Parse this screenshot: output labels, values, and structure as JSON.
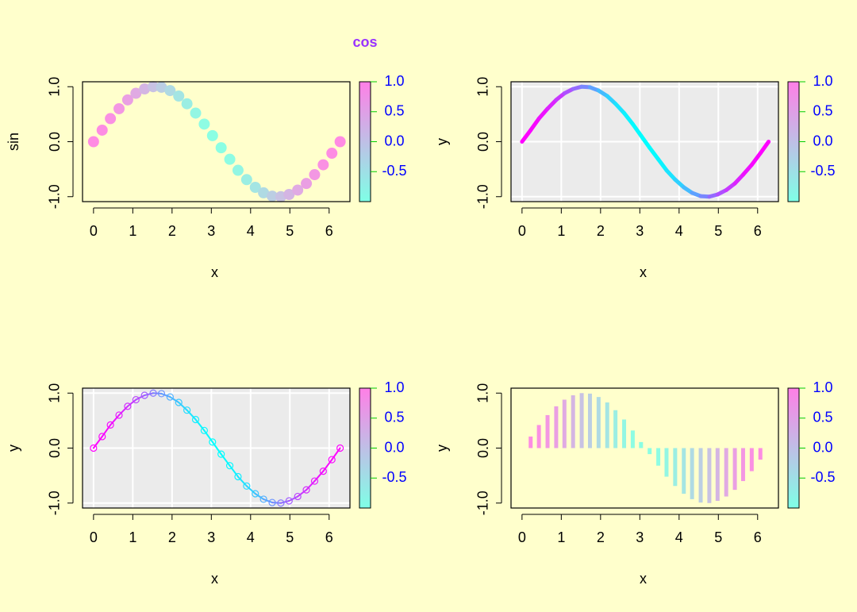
{
  "chart_data": [
    {
      "type": "scatter",
      "color_label": "cos",
      "xlabel": "x",
      "ylabel": "sin",
      "x": [
        0,
        0.22,
        0.43,
        0.65,
        0.87,
        1.08,
        1.3,
        1.52,
        1.73,
        1.95,
        2.17,
        2.38,
        2.6,
        2.82,
        3.03,
        3.25,
        3.47,
        3.68,
        3.9,
        4.12,
        4.33,
        4.55,
        4.77,
        4.98,
        5.2,
        5.42,
        5.63,
        5.85,
        6.07,
        6.28
      ],
      "y": [
        0,
        0.21,
        0.42,
        0.6,
        0.76,
        0.88,
        0.96,
        1,
        0.99,
        0.93,
        0.83,
        0.69,
        0.52,
        0.32,
        0.11,
        -0.11,
        -0.32,
        -0.52,
        -0.69,
        -0.83,
        -0.93,
        -0.99,
        -1,
        -0.96,
        -0.88,
        -0.76,
        -0.6,
        -0.42,
        -0.21,
        0
      ],
      "colvar": [
        1,
        0.98,
        0.91,
        0.8,
        0.65,
        0.47,
        0.27,
        0.05,
        -0.16,
        -0.37,
        -0.56,
        -0.72,
        -0.86,
        -0.95,
        -0.99,
        -0.99,
        -0.95,
        -0.86,
        -0.72,
        -0.56,
        -0.37,
        -0.16,
        0.05,
        0.27,
        0.47,
        0.65,
        0.8,
        0.91,
        0.98,
        1
      ],
      "xlim": [
        -0.28,
        6.53
      ],
      "ylim": [
        -1.09,
        1.09
      ],
      "xticks": [
        0,
        1,
        2,
        3,
        4,
        5,
        6
      ],
      "yticks": [
        {
          "value": -1,
          "label": "-1.0"
        },
        {
          "value": 0,
          "label": "0.0"
        },
        {
          "value": 1,
          "label": "1.0"
        }
      ],
      "clim": [
        -1,
        1
      ],
      "cticks": [
        {
          "value": -0.5,
          "label": "-0.5"
        },
        {
          "value": 0,
          "label": "0.0"
        },
        {
          "value": 0.5,
          "label": "0.5"
        },
        {
          "value": 1,
          "label": "1.0"
        }
      ],
      "palette": [
        "#00ffff",
        "#ff00ff"
      ],
      "alpha": 0.45,
      "background": "#ffffcc",
      "grid": false
    },
    {
      "type": "line",
      "xlabel": "x",
      "ylabel": "y",
      "x": [
        0,
        0.22,
        0.43,
        0.65,
        0.87,
        1.08,
        1.3,
        1.52,
        1.73,
        1.95,
        2.17,
        2.38,
        2.6,
        2.82,
        3.03,
        3.25,
        3.47,
        3.68,
        3.9,
        4.12,
        4.33,
        4.55,
        4.77,
        4.98,
        5.2,
        5.42,
        5.63,
        5.85,
        6.07,
        6.28
      ],
      "y": [
        0,
        0.21,
        0.42,
        0.6,
        0.76,
        0.88,
        0.96,
        1,
        0.99,
        0.93,
        0.83,
        0.69,
        0.52,
        0.32,
        0.11,
        -0.11,
        -0.32,
        -0.52,
        -0.69,
        -0.83,
        -0.93,
        -0.99,
        -1,
        -0.96,
        -0.88,
        -0.76,
        -0.6,
        -0.42,
        -0.21,
        0
      ],
      "colvar": [
        1,
        0.98,
        0.91,
        0.8,
        0.65,
        0.47,
        0.27,
        0.05,
        -0.16,
        -0.37,
        -0.56,
        -0.72,
        -0.86,
        -0.95,
        -0.99,
        -0.99,
        -0.95,
        -0.86,
        -0.72,
        -0.56,
        -0.37,
        -0.16,
        0.05,
        0.27,
        0.47,
        0.65,
        0.8,
        0.91,
        0.98,
        1
      ],
      "xlim": [
        -0.28,
        6.53
      ],
      "ylim": [
        -1.09,
        1.09
      ],
      "xticks": [
        0,
        1,
        2,
        3,
        4,
        5,
        6
      ],
      "yticks": [
        {
          "value": -1,
          "label": "-1.0"
        },
        {
          "value": 0,
          "label": "0.0"
        },
        {
          "value": 1,
          "label": "1.0"
        }
      ],
      "clim": [
        -1,
        1
      ],
      "cticks": [
        {
          "value": -0.5,
          "label": "-0.5"
        },
        {
          "value": 0,
          "label": "0.0"
        },
        {
          "value": 0.5,
          "label": "0.5"
        },
        {
          "value": 1,
          "label": "1.0"
        }
      ],
      "palette": [
        "#00ffff",
        "#ff00ff"
      ],
      "alpha": 1,
      "line_width": 5,
      "markers": false,
      "background": "#ebebeb",
      "grid": true
    },
    {
      "type": "line",
      "xlabel": "x",
      "ylabel": "y",
      "x": [
        0,
        0.22,
        0.43,
        0.65,
        0.87,
        1.08,
        1.3,
        1.52,
        1.73,
        1.95,
        2.17,
        2.38,
        2.6,
        2.82,
        3.03,
        3.25,
        3.47,
        3.68,
        3.9,
        4.12,
        4.33,
        4.55,
        4.77,
        4.98,
        5.2,
        5.42,
        5.63,
        5.85,
        6.07,
        6.28
      ],
      "y": [
        0,
        0.21,
        0.42,
        0.6,
        0.76,
        0.88,
        0.96,
        1,
        0.99,
        0.93,
        0.83,
        0.69,
        0.52,
        0.32,
        0.11,
        -0.11,
        -0.32,
        -0.52,
        -0.69,
        -0.83,
        -0.93,
        -0.99,
        -1,
        -0.96,
        -0.88,
        -0.76,
        -0.6,
        -0.42,
        -0.21,
        0
      ],
      "colvar": [
        1,
        0.98,
        0.91,
        0.8,
        0.65,
        0.47,
        0.27,
        0.05,
        -0.16,
        -0.37,
        -0.56,
        -0.72,
        -0.86,
        -0.95,
        -0.99,
        -0.99,
        -0.95,
        -0.86,
        -0.72,
        -0.56,
        -0.37,
        -0.16,
        0.05,
        0.27,
        0.47,
        0.65,
        0.8,
        0.91,
        0.98,
        1
      ],
      "xlim": [
        -0.28,
        6.53
      ],
      "ylim": [
        -1.09,
        1.09
      ],
      "xticks": [
        0,
        1,
        2,
        3,
        4,
        5,
        6
      ],
      "yticks": [
        {
          "value": -1,
          "label": "-1.0"
        },
        {
          "value": 0,
          "label": "0.0"
        },
        {
          "value": 1,
          "label": "1.0"
        }
      ],
      "clim": [
        -1,
        1
      ],
      "cticks": [
        {
          "value": -0.5,
          "label": "-0.5"
        },
        {
          "value": 0,
          "label": "0.0"
        },
        {
          "value": 0.5,
          "label": "0.5"
        },
        {
          "value": 1,
          "label": "1.0"
        }
      ],
      "palette": [
        "#00ffff",
        "#ff00ff"
      ],
      "alpha": 1,
      "line_width": 2,
      "markers": true,
      "background": "#ebebeb",
      "grid": true
    },
    {
      "type": "bar",
      "xlabel": "x",
      "ylabel": "y",
      "x": [
        0,
        0.22,
        0.43,
        0.65,
        0.87,
        1.08,
        1.3,
        1.52,
        1.73,
        1.95,
        2.17,
        2.38,
        2.6,
        2.82,
        3.03,
        3.25,
        3.47,
        3.68,
        3.9,
        4.12,
        4.33,
        4.55,
        4.77,
        4.98,
        5.2,
        5.42,
        5.63,
        5.85,
        6.07,
        6.28
      ],
      "y": [
        0,
        0.21,
        0.42,
        0.6,
        0.76,
        0.88,
        0.96,
        1,
        0.99,
        0.93,
        0.83,
        0.69,
        0.52,
        0.32,
        0.11,
        -0.11,
        -0.32,
        -0.52,
        -0.69,
        -0.83,
        -0.93,
        -0.99,
        -1,
        -0.96,
        -0.88,
        -0.76,
        -0.6,
        -0.42,
        -0.21,
        0
      ],
      "colvar": [
        1,
        0.98,
        0.91,
        0.8,
        0.65,
        0.47,
        0.27,
        0.05,
        -0.16,
        -0.37,
        -0.56,
        -0.72,
        -0.86,
        -0.95,
        -0.99,
        -0.99,
        -0.95,
        -0.86,
        -0.72,
        -0.56,
        -0.37,
        -0.16,
        0.05,
        0.27,
        0.47,
        0.65,
        0.8,
        0.91,
        0.98,
        1
      ],
      "xlim": [
        -0.28,
        6.53
      ],
      "ylim": [
        -1.09,
        1.09
      ],
      "xticks": [
        0,
        1,
        2,
        3,
        4,
        5,
        6
      ],
      "yticks": [
        {
          "value": -1,
          "label": "-1.0"
        },
        {
          "value": 0,
          "label": "0.0"
        },
        {
          "value": 1,
          "label": "1.0"
        }
      ],
      "clim": [
        -1,
        1
      ],
      "cticks": [
        {
          "value": -0.5,
          "label": "-0.5"
        },
        {
          "value": 0,
          "label": "0.0"
        },
        {
          "value": 0.5,
          "label": "0.5"
        },
        {
          "value": 1,
          "label": "1.0"
        }
      ],
      "palette": [
        "#00ffff",
        "#ff00ff"
      ],
      "alpha": 0.45,
      "background": "#ffffcc",
      "grid": false
    }
  ]
}
